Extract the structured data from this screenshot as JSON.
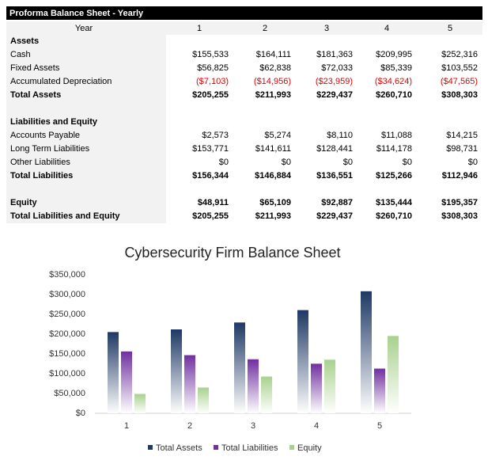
{
  "table": {
    "title": "Proforma Balance Sheet - Yearly",
    "header": [
      "Year",
      "1",
      "2",
      "3",
      "4",
      "5"
    ],
    "rows": [
      {
        "label": "Assets"
      },
      {
        "label": "Cash",
        "values": [
          "$155,533",
          "$164,111",
          "$181,363",
          "$209,995",
          "$252,316"
        ]
      },
      {
        "label": "Fixed Assets",
        "values": [
          "$56,825",
          "$62,838",
          "$72,033",
          "$85,339",
          "$103,552"
        ]
      },
      {
        "label": "Accumulated Depreciation",
        "values": [
          "($7,103)",
          "($14,956)",
          "($23,959)",
          "($34,624)",
          "($47,565)"
        ]
      },
      {
        "label": "Total Assets",
        "values": [
          "$205,255",
          "$211,993",
          "$229,437",
          "$260,710",
          "$308,303"
        ]
      },
      {
        "label": "Liabilities and Equity"
      },
      {
        "label": "Accounts Payable",
        "values": [
          "$2,573",
          "$5,274",
          "$8,110",
          "$11,088",
          "$14,215"
        ]
      },
      {
        "label": "Long Term Liabilities",
        "values": [
          "$153,771",
          "$141,611",
          "$128,441",
          "$114,178",
          "$98,731"
        ]
      },
      {
        "label": "Other Liabilities",
        "values": [
          "$0",
          "$0",
          "$0",
          "$0",
          "$0"
        ]
      },
      {
        "label": "Total Liabilities",
        "values": [
          "$156,344",
          "$146,884",
          "$136,551",
          "$125,266",
          "$112,946"
        ]
      },
      {
        "label": "Equity",
        "values": [
          "$48,911",
          "$65,109",
          "$92,887",
          "$135,444",
          "$195,357"
        ]
      },
      {
        "label": "Total Liabilities and Equity",
        "values": [
          "$205,255",
          "$211,993",
          "$229,437",
          "$260,710",
          "$308,303"
        ]
      }
    ]
  },
  "chart_data": {
    "type": "bar",
    "title": "Cybersecurity Firm Balance Sheet",
    "categories": [
      "1",
      "2",
      "3",
      "4",
      "5"
    ],
    "series": [
      {
        "name": "Total Assets",
        "color": "#1f3864",
        "values": [
          205255,
          211993,
          229437,
          260710,
          308303
        ]
      },
      {
        "name": "Total Liabilities",
        "color": "#7030a0",
        "values": [
          156344,
          146884,
          136551,
          125266,
          112946
        ]
      },
      {
        "name": "Equity",
        "color": "#a9d18e",
        "values": [
          48911,
          65109,
          92887,
          135444,
          195357
        ]
      }
    ],
    "ylim": [
      0,
      350000
    ],
    "yticks": [
      {
        "value": 0,
        "label": "$0"
      },
      {
        "value": 50000,
        "label": "$50,000"
      },
      {
        "value": 100000,
        "label": "$100,000"
      },
      {
        "value": 150000,
        "label": "$150,000"
      },
      {
        "value": 200000,
        "label": "$200,000"
      },
      {
        "value": 250000,
        "label": "$250,000"
      },
      {
        "value": 300000,
        "label": "$300,000"
      },
      {
        "value": 350000,
        "label": "$350,000"
      }
    ],
    "legend": "bottom"
  }
}
